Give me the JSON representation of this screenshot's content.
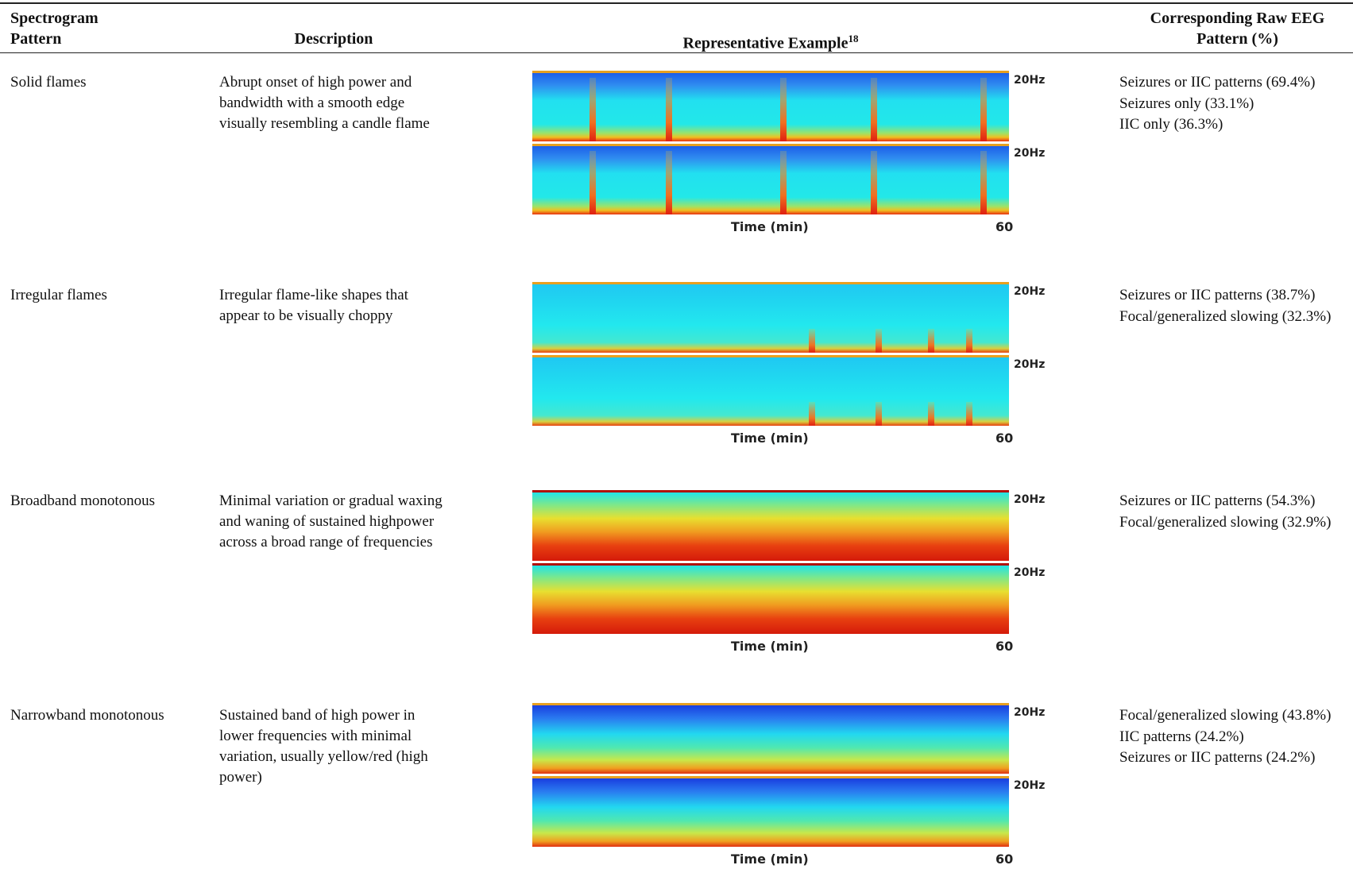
{
  "header": {
    "pattern": "Spectrogram Pattern",
    "description": "Description",
    "example": "Representative Example",
    "example_ref": "18",
    "eeg": "Corresponding Raw EEG Pattern (%)"
  },
  "rows": [
    {
      "pattern": "Solid flames",
      "description": "Abrupt onset of high power and bandwidth with a smooth edge visually resembling a candle flame",
      "example": {
        "freq_top": "20Hz",
        "freq_bottom": "20Hz",
        "x_label": "Time (min)",
        "x_end": "60"
      },
      "eeg": [
        "Seizures or IIC patterns (69.4%)",
        "Seizures only (33.1%)",
        "IIC only (36.3%)"
      ]
    },
    {
      "pattern": "Irregular flames",
      "description": "Irregular flame-like shapes that appear to be visually choppy",
      "example": {
        "freq_top": "20Hz",
        "freq_bottom": "20Hz",
        "x_label": "Time (min)",
        "x_end": "60"
      },
      "eeg": [
        "Seizures or IIC patterns (38.7%)",
        "Focal/generalized slowing (32.3%)"
      ]
    },
    {
      "pattern": "Broadband monotonous",
      "description": "Minimal variation or gradual waxing and waning of sustained highpower across a broad range of frequencies",
      "example": {
        "freq_top": "20Hz",
        "freq_bottom": "20Hz",
        "x_label": "Time (min)",
        "x_end": "60"
      },
      "eeg": [
        "Seizures or IIC patterns (54.3%)",
        "Focal/generalized slowing (32.9%)"
      ]
    },
    {
      "pattern": "Narrowband monotonous",
      "description": "Sustained band of high power in lower frequencies with minimal variation, usually yellow/red (high power)",
      "example": {
        "freq_top": "20Hz",
        "freq_bottom": "20Hz",
        "x_label": "Time (min)",
        "x_end": "60"
      },
      "eeg": [
        "Focal/generalized slowing (43.8%)",
        "IIC patterns (24.2%)",
        "Seizures or IIC patterns (24.2%)"
      ]
    }
  ]
}
